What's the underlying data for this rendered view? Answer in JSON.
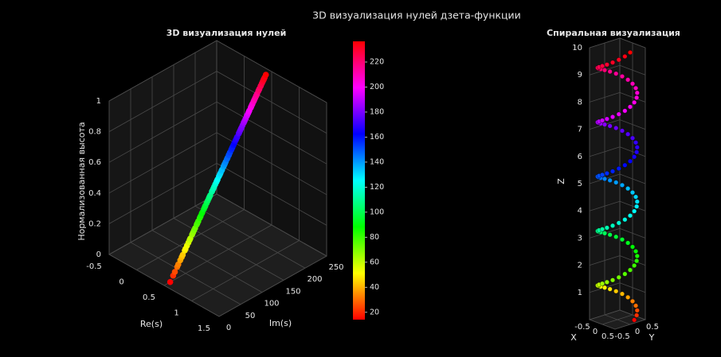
{
  "title": "3D визуализация нулей дзета-функции",
  "chart_data": [
    {
      "type": "scatter3d",
      "title": "3D визуализация нулей",
      "xlabel": "Re(s)",
      "ylabel": "Im(s)",
      "zlabel": "Нормализованная высота",
      "xlim": [
        -0.5,
        1.5
      ],
      "xticks": [
        -0.5,
        0,
        0.5,
        1,
        1.5
      ],
      "ylim": [
        0,
        250
      ],
      "yticks": [
        0,
        50,
        100,
        150,
        200,
        250
      ],
      "zlim": [
        0,
        1
      ],
      "zticks": [
        0,
        0.2,
        0.4,
        0.6,
        0.8,
        1
      ],
      "colormap": "hsv",
      "clim": [
        14.135,
        236.524
      ],
      "colorbar_ticks": [
        20,
        40,
        60,
        80,
        100,
        120,
        140,
        160,
        180,
        200,
        220
      ],
      "re": 0.5,
      "im": [
        14.135,
        21.022,
        25.011,
        30.425,
        32.935,
        37.586,
        40.919,
        43.327,
        48.005,
        49.774,
        52.97,
        56.446,
        59.347,
        60.832,
        65.113,
        67.08,
        69.546,
        72.067,
        75.705,
        77.145,
        79.337,
        82.91,
        84.736,
        87.425,
        88.809,
        92.492,
        94.651,
        95.871,
        98.831,
        101.318,
        103.726,
        105.447,
        107.169,
        111.03,
        111.875,
        114.32,
        116.227,
        118.791,
        121.37,
        122.947,
        124.257,
        127.517,
        129.579,
        131.088,
        133.498,
        134.757,
        138.116,
        139.736,
        141.124,
        143.112,
        146.001,
        147.423,
        150.054,
        150.925,
        153.025,
        156.113,
        157.598,
        158.85,
        161.189,
        163.031,
        165.537,
        167.184,
        169.095,
        169.912,
        173.412,
        174.754,
        176.441,
        178.377,
        179.917,
        182.207,
        184.875,
        185.599,
        187.229,
        189.416,
        192.027,
        193.08,
        195.265,
        196.877,
        198.015,
        201.265,
        202.494,
        204.19,
        205.395,
        207.906,
        209.577,
        211.691,
        213.348,
        214.547,
        216.17,
        219.068,
        220.715,
        221.431,
        224.007,
        224.983,
        227.421,
        229.337,
        231.25,
        231.987,
        233.693,
        236.524
      ],
      "height": [
        0,
        0.031,
        0.049,
        0.073,
        0.085,
        0.105,
        0.12,
        0.131,
        0.152,
        0.16,
        0.175,
        0.19,
        0.203,
        0.21,
        0.229,
        0.238,
        0.249,
        0.26,
        0.277,
        0.283,
        0.293,
        0.309,
        0.317,
        0.33,
        0.336,
        0.352,
        0.362,
        0.368,
        0.381,
        0.392,
        0.403,
        0.411,
        0.418,
        0.436,
        0.44,
        0.45,
        0.459,
        0.471,
        0.482,
        0.489,
        0.495,
        0.51,
        0.519,
        0.526,
        0.537,
        0.542,
        0.557,
        0.565,
        0.571,
        0.58,
        0.593,
        0.599,
        0.611,
        0.615,
        0.625,
        0.638,
        0.645,
        0.651,
        0.661,
        0.67,
        0.681,
        0.688,
        0.697,
        0.7,
        0.716,
        0.722,
        0.73,
        0.739,
        0.745,
        0.756,
        0.768,
        0.771,
        0.778,
        0.788,
        0.8,
        0.805,
        0.814,
        0.822,
        0.827,
        0.841,
        0.847,
        0.855,
        0.86,
        0.871,
        0.879,
        0.888,
        0.896,
        0.901,
        0.908,
        0.922,
        0.929,
        0.932,
        0.944,
        0.948,
        0.959,
        0.968,
        0.976,
        0.98,
        0.987,
        1.0
      ]
    },
    {
      "type": "scatter3d",
      "title": "Спиральная визуализация",
      "xlabel": "X",
      "ylabel": "Y",
      "zlabel": "Z",
      "xlim": [
        -0.5,
        0.5
      ],
      "xticks": [
        -0.5,
        0,
        0.5
      ],
      "ylim": [
        -0.5,
        0.5
      ],
      "yticks": [
        -0.5,
        0,
        0.5
      ],
      "zlim": [
        0,
        10
      ],
      "zticks": [
        1,
        2,
        3,
        4,
        5,
        6,
        7,
        8,
        9,
        10
      ],
      "x": [
        0.476,
        0.405,
        0.294,
        0.155,
        0,
        -0.155,
        -0.294,
        -0.405,
        -0.476,
        -0.5,
        -0.476,
        -0.405,
        -0.294,
        -0.155,
        0,
        0.155,
        0.294,
        0.405,
        0.476,
        0.5,
        0.476,
        0.405,
        0.294,
        0.155,
        0,
        -0.155,
        -0.294,
        -0.405,
        -0.476,
        -0.5,
        -0.476,
        -0.405,
        -0.294,
        -0.155,
        0,
        0.155,
        0.294,
        0.405,
        0.476,
        0.5,
        0.476,
        0.405,
        0.294,
        0.155,
        0,
        -0.155,
        -0.294,
        -0.405,
        -0.476,
        -0.5,
        -0.476,
        -0.405,
        -0.294,
        -0.155,
        0,
        0.155,
        0.294,
        0.405,
        0.476,
        0.5,
        0.476,
        0.405,
        0.294,
        0.155,
        0,
        -0.155,
        -0.294,
        -0.405,
        -0.476,
        -0.5,
        -0.476,
        -0.405,
        -0.294,
        -0.155,
        0,
        0.155,
        0.294,
        0.405,
        0.476,
        0.5,
        0.476,
        0.405,
        0.294,
        0.155,
        0,
        -0.155,
        -0.294,
        -0.405,
        -0.476,
        -0.5,
        -0.476,
        -0.405,
        -0.294,
        -0.155,
        0,
        0.155,
        0.294,
        0.405,
        0.476,
        0.5
      ],
      "y": [
        0.155,
        0.294,
        0.405,
        0.476,
        0.5,
        0.476,
        0.405,
        0.294,
        0.155,
        0,
        -0.155,
        -0.294,
        -0.405,
        -0.476,
        -0.5,
        -0.476,
        -0.405,
        -0.294,
        -0.155,
        0,
        0.155,
        0.294,
        0.405,
        0.476,
        0.5,
        0.476,
        0.405,
        0.294,
        0.155,
        0,
        -0.155,
        -0.294,
        -0.405,
        -0.476,
        -0.5,
        -0.476,
        -0.405,
        -0.294,
        -0.155,
        0,
        0.155,
        0.294,
        0.405,
        0.476,
        0.5,
        0.476,
        0.405,
        0.294,
        0.155,
        0,
        -0.155,
        -0.294,
        -0.405,
        -0.476,
        -0.5,
        -0.476,
        -0.405,
        -0.294,
        -0.155,
        0,
        0.155,
        0.294,
        0.405,
        0.476,
        0.5,
        0.476,
        0.405,
        0.294,
        0.155,
        0,
        -0.155,
        -0.294,
        -0.405,
        -0.476,
        -0.5,
        -0.476,
        -0.405,
        -0.294,
        -0.155,
        0,
        0.155,
        0.294,
        0.405,
        0.476,
        0.5,
        0.476,
        0.405,
        0.294,
        0.155,
        0,
        -0.155,
        -0.294,
        -0.405,
        -0.476,
        -0.5,
        -0.476,
        -0.405,
        -0.294,
        -0.155,
        0
      ],
      "z": [
        0.1,
        0.2,
        0.3,
        0.4,
        0.5,
        0.6,
        0.7,
        0.8,
        0.9,
        1.0,
        1.1,
        1.2,
        1.3,
        1.4,
        1.5,
        1.6,
        1.7,
        1.8,
        1.9,
        2.0,
        2.1,
        2.2,
        2.3,
        2.4,
        2.5,
        2.6,
        2.7,
        2.8,
        2.9,
        3.0,
        3.1,
        3.2,
        3.3,
        3.4,
        3.5,
        3.6,
        3.7,
        3.8,
        3.9,
        4.0,
        4.1,
        4.2,
        4.3,
        4.4,
        4.5,
        4.6,
        4.7,
        4.8,
        4.9,
        5.0,
        5.1,
        5.2,
        5.3,
        5.4,
        5.5,
        5.6,
        5.7,
        5.8,
        5.9,
        6.0,
        6.1,
        6.2,
        6.3,
        6.4,
        6.5,
        6.6,
        6.7,
        6.8,
        6.9,
        7.0,
        7.1,
        7.2,
        7.3,
        7.4,
        7.5,
        7.6,
        7.7,
        7.8,
        7.9,
        8.0,
        8.1,
        8.2,
        8.3,
        8.4,
        8.5,
        8.6,
        8.7,
        8.8,
        8.9,
        9.0,
        9.1,
        9.2,
        9.3,
        9.4,
        9.5,
        9.6,
        9.7,
        9.8,
        9.9,
        10.0
      ]
    }
  ]
}
